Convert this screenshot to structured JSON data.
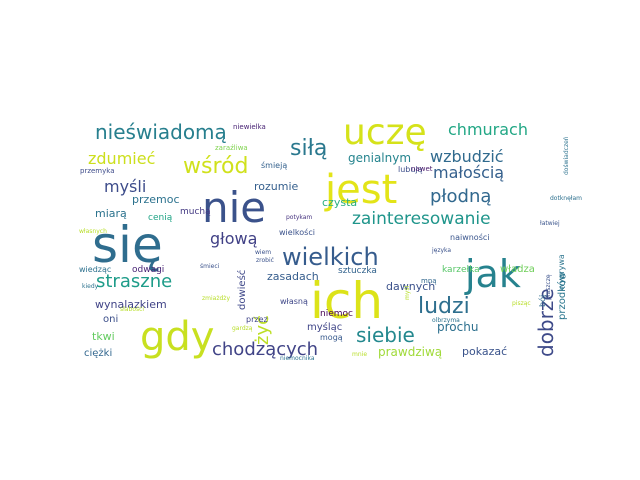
{
  "word_cloud": {
    "words": [
      {
        "text": "się",
        "weight": 62,
        "color": "#2f6d8e",
        "orientation": "horizontal"
      },
      {
        "text": "ich",
        "weight": 54,
        "color": "#dce319",
        "orientation": "horizontal"
      },
      {
        "text": "nie",
        "weight": 48,
        "color": "#3b528b",
        "orientation": "horizontal"
      },
      {
        "text": "jest",
        "weight": 44,
        "color": "#e3e418",
        "orientation": "horizontal"
      },
      {
        "text": "gdy",
        "weight": 44,
        "color": "#c8e020",
        "orientation": "horizontal"
      },
      {
        "text": "uczę",
        "weight": 40,
        "color": "#d5e21a",
        "orientation": "horizontal"
      },
      {
        "text": "jak",
        "weight": 40,
        "color": "#26828e",
        "orientation": "horizontal"
      },
      {
        "text": "wielkich",
        "weight": 24,
        "color": "#365c8d",
        "orientation": "horizontal"
      },
      {
        "text": "zainteresowanie",
        "weight": 18,
        "color": "#1f958b",
        "orientation": "horizontal"
      },
      {
        "text": "nieświadomą",
        "weight": 20,
        "color": "#277f8e",
        "orientation": "horizontal"
      },
      {
        "text": "siłą",
        "weight": 22,
        "color": "#2a788e",
        "orientation": "horizontal"
      },
      {
        "text": "wśród",
        "weight": 22,
        "color": "#d0e11c",
        "orientation": "horizontal"
      },
      {
        "text": "ludzi",
        "weight": 22,
        "color": "#2e6f8e",
        "orientation": "horizontal"
      },
      {
        "text": "siebie",
        "weight": 20,
        "color": "#23888e",
        "orientation": "horizontal"
      },
      {
        "text": "dobrze",
        "weight": 20,
        "color": "#3e4a89",
        "orientation": "vertical"
      },
      {
        "text": "straszne",
        "weight": 18,
        "color": "#1e9c89",
        "orientation": "horizontal"
      },
      {
        "text": "chodzących",
        "weight": 18,
        "color": "#414487",
        "orientation": "horizontal"
      },
      {
        "text": "płodną",
        "weight": 18,
        "color": "#31688e",
        "orientation": "horizontal"
      },
      {
        "text": "małością",
        "weight": 16,
        "color": "#35608d",
        "orientation": "horizontal"
      },
      {
        "text": "wzbudzić",
        "weight": 16,
        "color": "#306a8e",
        "orientation": "horizontal"
      },
      {
        "text": "chmurach",
        "weight": 16,
        "color": "#22a785",
        "orientation": "horizontal"
      },
      {
        "text": "zdumieć",
        "weight": 16,
        "color": "#ccdf1c",
        "orientation": "horizontal"
      },
      {
        "text": "myśli",
        "weight": 16,
        "color": "#3d4c8a",
        "orientation": "horizontal"
      },
      {
        "text": "głową",
        "weight": 16,
        "color": "#414186",
        "orientation": "horizontal"
      },
      {
        "text": "żyć",
        "weight": 18,
        "color": "#bddf26",
        "orientation": "vertical"
      },
      {
        "text": "genialnym",
        "weight": 12,
        "color": "#25848e",
        "orientation": "horizontal"
      },
      {
        "text": "przemoc",
        "weight": 11,
        "color": "#2c728e",
        "orientation": "horizontal"
      },
      {
        "text": "rozumie",
        "weight": 11,
        "color": "#355f8d",
        "orientation": "horizontal"
      },
      {
        "text": "czysta",
        "weight": 11,
        "color": "#29af7f",
        "orientation": "horizontal"
      },
      {
        "text": "miarą",
        "weight": 11,
        "color": "#2c738e",
        "orientation": "horizontal"
      },
      {
        "text": "zasadach",
        "weight": 11,
        "color": "#365d8d",
        "orientation": "horizontal"
      },
      {
        "text": "dawnych",
        "weight": 11,
        "color": "#3b518b",
        "orientation": "horizontal"
      },
      {
        "text": "wynalazkiem",
        "weight": 11,
        "color": "#414487",
        "orientation": "horizontal"
      },
      {
        "text": "prochu",
        "weight": 12,
        "color": "#2d708e",
        "orientation": "horizontal"
      },
      {
        "text": "prawdziwą",
        "weight": 12,
        "color": "#a0da39",
        "orientation": "horizontal"
      },
      {
        "text": "pokazać",
        "weight": 11,
        "color": "#3a538b",
        "orientation": "horizontal"
      },
      {
        "text": "tkwi",
        "weight": 11,
        "color": "#63cb5f",
        "orientation": "horizontal"
      },
      {
        "text": "oni",
        "weight": 10,
        "color": "#3c4f8a",
        "orientation": "horizontal"
      },
      {
        "text": "ciężki",
        "weight": 10,
        "color": "#31668e",
        "orientation": "horizontal"
      },
      {
        "text": "myśląc",
        "weight": 10,
        "color": "#404688",
        "orientation": "horizontal"
      },
      {
        "text": "władza",
        "weight": 10,
        "color": "#6ece58",
        "orientation": "horizontal"
      },
      {
        "text": "przodków",
        "weight": 10,
        "color": "#2a768e",
        "orientation": "vertical"
      },
      {
        "text": "dowieść",
        "weight": 10,
        "color": "#3f4889",
        "orientation": "vertical"
      },
      {
        "text": "muchą",
        "weight": 9,
        "color": "#443a83",
        "orientation": "horizontal"
      },
      {
        "text": "cenią",
        "weight": 9,
        "color": "#20a486",
        "orientation": "horizontal"
      },
      {
        "text": "wielkości",
        "weight": 8,
        "color": "#3b528b",
        "orientation": "horizontal"
      },
      {
        "text": "sztuczka",
        "weight": 9,
        "color": "#33638d",
        "orientation": "horizontal"
      },
      {
        "text": "odwagi",
        "weight": 9,
        "color": "#482475",
        "orientation": "horizontal"
      },
      {
        "text": "karzełka",
        "weight": 9,
        "color": "#56c667",
        "orientation": "horizontal"
      },
      {
        "text": "naiwności",
        "weight": 8,
        "color": "#39558c",
        "orientation": "horizontal"
      },
      {
        "text": "wygrywa",
        "weight": 8,
        "color": "#2b748e",
        "orientation": "vertical"
      },
      {
        "text": "niemoc",
        "weight": 9,
        "color": "#440154",
        "orientation": "horizontal"
      },
      {
        "text": "mogą",
        "weight": 8,
        "color": "#37598c",
        "orientation": "horizontal"
      },
      {
        "text": "własną",
        "weight": 8,
        "color": "#3f4788",
        "orientation": "horizontal"
      },
      {
        "text": "lubują",
        "weight": 8,
        "color": "#3d4e8a",
        "orientation": "horizontal"
      },
      {
        "text": "śmieją",
        "weight": 8,
        "color": "#34618d",
        "orientation": "horizontal"
      },
      {
        "text": "nawet",
        "weight": 7,
        "color": "#481a6c",
        "orientation": "horizontal"
      },
      {
        "text": "mną",
        "weight": 7,
        "color": "#31678e",
        "orientation": "horizontal"
      },
      {
        "text": "bój",
        "weight": 8,
        "color": "#2f6b8e",
        "orientation": "vertical"
      },
      {
        "text": "przez",
        "weight": 8,
        "color": "#404588",
        "orientation": "horizontal"
      },
      {
        "text": "wiedząc",
        "weight": 8,
        "color": "#2d718e",
        "orientation": "horizontal"
      },
      {
        "text": "przemyka",
        "weight": 7,
        "color": "#3e4c8a",
        "orientation": "horizontal"
      },
      {
        "text": "niewielka",
        "weight": 7,
        "color": "#482374",
        "orientation": "horizontal"
      },
      {
        "text": "zaraźliwa",
        "weight": 7,
        "color": "#7fd34e",
        "orientation": "horizontal"
      },
      {
        "text": "potykam",
        "weight": 6,
        "color": "#46337f",
        "orientation": "horizontal"
      },
      {
        "text": "łatwiej",
        "weight": 6,
        "color": "#3a548c",
        "orientation": "horizontal"
      },
      {
        "text": "dotknęłam",
        "weight": 6,
        "color": "#2d708e",
        "orientation": "horizontal"
      },
      {
        "text": "języka",
        "weight": 6,
        "color": "#3b528b",
        "orientation": "horizontal"
      },
      {
        "text": "kiedy",
        "weight": 6,
        "color": "#2c728e",
        "orientation": "horizontal"
      },
      {
        "text": "śmieci",
        "weight": 6,
        "color": "#3b528b",
        "orientation": "horizontal"
      },
      {
        "text": "zrobić",
        "weight": 6,
        "color": "#3b528b",
        "orientation": "horizontal"
      },
      {
        "text": "wiem",
        "weight": 6,
        "color": "#3b528b",
        "orientation": "horizontal"
      },
      {
        "text": "zmiażdży",
        "weight": 6,
        "color": "#b8de29",
        "orientation": "horizontal"
      },
      {
        "text": "słabości",
        "weight": 6,
        "color": "#b8de29",
        "orientation": "horizontal"
      },
      {
        "text": "gardzą",
        "weight": 6,
        "color": "#b8de29",
        "orientation": "horizontal"
      },
      {
        "text": "niemocnika",
        "weight": 6,
        "color": "#2c728e",
        "orientation": "horizontal"
      },
      {
        "text": "mnie",
        "weight": 6,
        "color": "#b8de29",
        "orientation": "horizontal"
      },
      {
        "text": "płaszczę",
        "weight": 6,
        "color": "#3b528b",
        "orientation": "vertical"
      },
      {
        "text": "pisząc",
        "weight": 6,
        "color": "#b8de29",
        "orientation": "horizontal"
      },
      {
        "text": "olbrzyma",
        "weight": 6,
        "color": "#2c728e",
        "orientation": "horizontal"
      },
      {
        "text": "myśl",
        "weight": 6,
        "color": "#b8de29",
        "orientation": "vertical"
      },
      {
        "text": "własnych",
        "weight": 6,
        "color": "#b8de29",
        "orientation": "horizontal"
      },
      {
        "text": "doświadczeń",
        "weight": 6,
        "color": "#2c728e",
        "orientation": "vertical"
      }
    ]
  }
}
